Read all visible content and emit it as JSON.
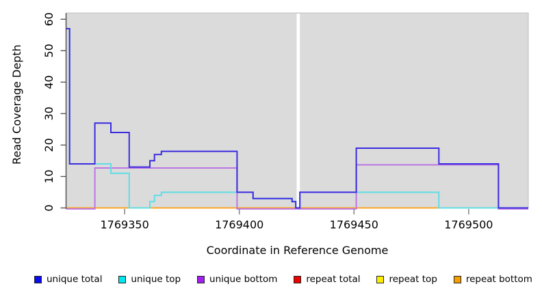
{
  "chart_data": {
    "type": "line",
    "subtype": "step-coverage-plot",
    "title": "",
    "xlabel": "Coordinate in Reference Genome",
    "ylabel": "Read Coverage Depth",
    "xlim": [
      1769324.6,
      1769526
    ],
    "ylim": [
      0,
      62
    ],
    "xticks": [
      1769350,
      1769400,
      1769450,
      1769500
    ],
    "yticks": [
      0,
      10,
      20,
      30,
      40,
      50,
      60
    ],
    "grid": "off",
    "plot_background": "#dbdbdb",
    "masked_region": {
      "x0": 1769425.0,
      "x1": 1769426.4,
      "color": "#ffffff"
    },
    "x_end": 1769526,
    "legend_position": "bottom",
    "series": [
      {
        "name": "unique total",
        "color": "#0b0bee",
        "line_color": "#3a2be0",
        "steps": [
          [
            1769324.6,
            57
          ],
          [
            1769326,
            14
          ],
          [
            1769337,
            27
          ],
          [
            1769344,
            24
          ],
          [
            1769352,
            13
          ],
          [
            1769361,
            15
          ],
          [
            1769363,
            17
          ],
          [
            1769366,
            18
          ],
          [
            1769399,
            5
          ],
          [
            1769406,
            3
          ],
          [
            1769423,
            2
          ],
          [
            1769424.6,
            0
          ],
          [
            1769426.4,
            5
          ],
          [
            1769451,
            19
          ],
          [
            1769487,
            14
          ],
          [
            1769513,
            0
          ]
        ]
      },
      {
        "name": "unique top",
        "color": "#00e5ee",
        "line_color": "#5fdde6",
        "steps": [
          [
            1769324.6,
            57
          ],
          [
            1769326,
            14
          ],
          [
            1769344,
            11
          ],
          [
            1769352,
            0
          ],
          [
            1769361,
            2
          ],
          [
            1769363,
            4
          ],
          [
            1769366,
            5
          ],
          [
            1769406,
            3
          ],
          [
            1769423,
            2
          ],
          [
            1769424.6,
            0
          ],
          [
            1769426.4,
            5
          ],
          [
            1769487,
            0
          ]
        ]
      },
      {
        "name": "unique bottom",
        "color": "#a21ff0",
        "line_color": "#bb76e4",
        "steps": [
          [
            1769324.6,
            0
          ],
          [
            1769337,
            13
          ],
          [
            1769399,
            0
          ],
          [
            1769451,
            14
          ],
          [
            1769513,
            0
          ]
        ]
      },
      {
        "name": "repeat total",
        "color": "#ee0000",
        "line_color": "#d9534f",
        "steps": [
          [
            1769324.6,
            0
          ]
        ]
      },
      {
        "name": "repeat top",
        "color": "#fdee00",
        "line_color": "#ece62a",
        "steps": [
          [
            1769324.6,
            0
          ]
        ]
      },
      {
        "name": "repeat bottom",
        "color": "#f59e00",
        "line_color": "#ff9d1e",
        "steps": [
          [
            1769324.6,
            0
          ]
        ]
      }
    ]
  }
}
